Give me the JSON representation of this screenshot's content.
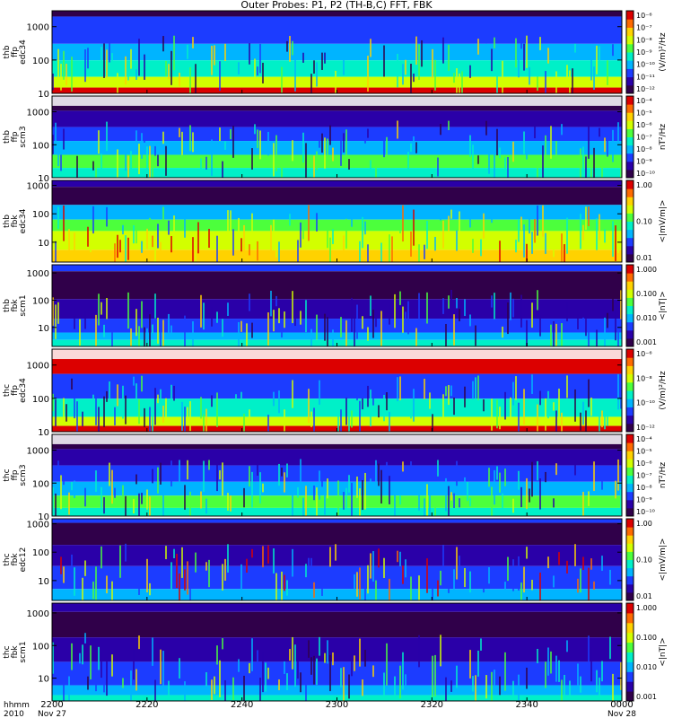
{
  "title": "Outer Probes: P1, P2 (TH-B,C) FFT, FBK",
  "colormap": [
    "#30004a",
    "#2a00a8",
    "#1c3cff",
    "#00b4ff",
    "#00f0c8",
    "#4cff3c",
    "#d2ff00",
    "#ffd200",
    "#ff6a00",
    "#dc0000"
  ],
  "chart_data": [
    {
      "type": "heatmap",
      "ylabel": [
        "thb",
        "ffp",
        "edc34"
      ],
      "ylim": [
        10,
        3000
      ],
      "yscale": "log",
      "yticks": [
        "10",
        "100",
        "1000"
      ],
      "colorbar_label": "(V/m)²/Hz",
      "colorbar_ticks": [
        "10⁻¹²",
        "10⁻¹¹",
        "10⁻¹⁰",
        "10⁻⁹",
        "10⁻⁸",
        "10⁻⁷",
        "10⁻⁶"
      ]
    },
    {
      "type": "heatmap",
      "ylabel": [
        "thb",
        "ffp",
        "scm3"
      ],
      "ylim": [
        10,
        3000
      ],
      "yscale": "log",
      "yticks": [
        "10",
        "100",
        "1000"
      ],
      "colorbar_label": "nT²/Hz",
      "colorbar_ticks": [
        "10⁻¹⁰",
        "10⁻⁹",
        "10⁻⁸",
        "10⁻⁷",
        "10⁻⁶",
        "10⁻⁵",
        "10⁻⁴"
      ]
    },
    {
      "type": "heatmap",
      "ylabel": [
        "thb",
        "fbk",
        "edc34"
      ],
      "ylim": [
        2,
        1500
      ],
      "yscale": "log",
      "yticks": [
        "10",
        "100",
        "1000"
      ],
      "colorbar_label": "<|mV/m|>",
      "colorbar_ticks": [
        "0.01",
        "0.10",
        "1.00"
      ]
    },
    {
      "type": "heatmap",
      "ylabel": [
        "thb",
        "fbk",
        "scm1"
      ],
      "ylim": [
        2,
        2000
      ],
      "yscale": "log",
      "yticks": [
        "10",
        "100",
        "1000"
      ],
      "colorbar_label": "<|nT|>",
      "colorbar_ticks": [
        "0.001",
        "0.010",
        "0.100",
        "1.000"
      ]
    },
    {
      "type": "heatmap",
      "ylabel": [
        "thc",
        "ffp",
        "edc34"
      ],
      "ylim": [
        10,
        3000
      ],
      "yscale": "log",
      "yticks": [
        "10",
        "100",
        "1000"
      ],
      "colorbar_label": "(V/m)²/Hz",
      "colorbar_ticks": [
        "10⁻¹²",
        "10⁻¹⁰",
        "10⁻⁸",
        "10⁻⁶"
      ]
    },
    {
      "type": "heatmap",
      "ylabel": [
        "thc",
        "ffp",
        "scm3"
      ],
      "ylim": [
        10,
        3000
      ],
      "yscale": "log",
      "yticks": [
        "10",
        "100",
        "1000"
      ],
      "colorbar_label": "nT²/Hz",
      "colorbar_ticks": [
        "10⁻¹⁰",
        "10⁻⁹",
        "10⁻⁸",
        "10⁻⁷",
        "10⁻⁶",
        "10⁻⁵",
        "10⁻⁴"
      ]
    },
    {
      "type": "heatmap",
      "ylabel": [
        "thc",
        "fbk",
        "edc12"
      ],
      "ylim": [
        2,
        1500
      ],
      "yscale": "log",
      "yticks": [
        "10",
        "100",
        "1000"
      ],
      "colorbar_label": "<|mV/m|>",
      "colorbar_ticks": [
        "0.01",
        "0.10",
        "1.00"
      ]
    },
    {
      "type": "heatmap",
      "ylabel": [
        "thc",
        "fbk",
        "scm1"
      ],
      "ylim": [
        2,
        2000
      ],
      "yscale": "log",
      "yticks": [
        "10",
        "100",
        "1000"
      ],
      "colorbar_label": "<|nT|>",
      "colorbar_ticks": [
        "0.001",
        "0.010",
        "0.100",
        "1.000"
      ]
    }
  ],
  "xaxis": {
    "row_labels": [
      "hhmm",
      "2010"
    ],
    "ticks": [
      {
        "top": "2200",
        "bottom": "Nov 27"
      },
      {
        "top": "2220",
        "bottom": ""
      },
      {
        "top": "2240",
        "bottom": ""
      },
      {
        "top": "2300",
        "bottom": ""
      },
      {
        "top": "2320",
        "bottom": ""
      },
      {
        "top": "2340",
        "bottom": ""
      },
      {
        "top": "0000",
        "bottom": "Nov 28"
      }
    ],
    "range": [
      "2010-11-27 22:00",
      "2010-11-28 00:00"
    ]
  }
}
